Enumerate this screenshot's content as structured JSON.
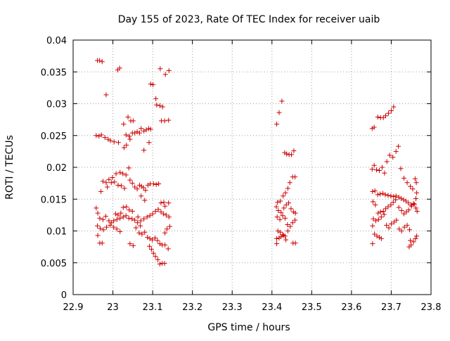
{
  "chart_data": {
    "type": "scatter",
    "title": "Day 155 of 2023, Rate Of TEC Index for receiver uaib",
    "xlabel": "GPS time / hours",
    "ylabel": "ROTI / TECUs",
    "xlim": [
      22.9,
      23.8
    ],
    "ylim": [
      0,
      0.04
    ],
    "x_ticks": [
      22.9,
      23.0,
      23.1,
      23.2,
      23.3,
      23.4,
      23.5,
      23.6,
      23.7,
      23.8
    ],
    "x_tick_labels": [
      "22.9",
      "23",
      "23.1",
      "23.2",
      "23.3",
      "23.4",
      "23.5",
      "23.6",
      "23.7",
      "23.8"
    ],
    "y_ticks": [
      0,
      0.005,
      0.01,
      0.015,
      0.02,
      0.025,
      0.03,
      0.035,
      0.04
    ],
    "y_tick_labels": [
      "0",
      "0.005",
      "0.01",
      "0.015",
      "0.02",
      "0.025",
      "0.03",
      "0.035",
      "0.04"
    ],
    "grid": true,
    "marker": "+",
    "colors": {
      "points": "#cc0000",
      "grid": "#a0a0a0",
      "axis": "#000000"
    },
    "series": [
      {
        "name": "ROTI",
        "points": [
          [
            22.961,
            0.0368
          ],
          [
            22.966,
            0.0368
          ],
          [
            22.973,
            0.0366
          ],
          [
            22.983,
            0.0314
          ],
          [
            23.012,
            0.0353
          ],
          [
            23.017,
            0.0356
          ],
          [
            23.119,
            0.0355
          ],
          [
            23.132,
            0.0346
          ],
          [
            23.141,
            0.0352
          ],
          [
            23.095,
            0.0331
          ],
          [
            23.101,
            0.033
          ],
          [
            23.108,
            0.0308
          ],
          [
            23.11,
            0.0298
          ],
          [
            23.118,
            0.0297
          ],
          [
            23.125,
            0.0295
          ],
          [
            23.122,
            0.0273
          ],
          [
            23.13,
            0.0273
          ],
          [
            23.14,
            0.0274
          ],
          [
            22.958,
            0.025
          ],
          [
            22.965,
            0.0249
          ],
          [
            22.971,
            0.0251
          ],
          [
            22.98,
            0.0247
          ],
          [
            22.988,
            0.0244
          ],
          [
            22.994,
            0.0242
          ],
          [
            23.003,
            0.024
          ],
          [
            23.014,
            0.0239
          ],
          [
            23.027,
            0.0268
          ],
          [
            23.038,
            0.0279
          ],
          [
            23.045,
            0.0273
          ],
          [
            23.051,
            0.0273
          ],
          [
            23.033,
            0.0251
          ],
          [
            23.041,
            0.0249
          ],
          [
            23.049,
            0.0254
          ],
          [
            23.055,
            0.0254
          ],
          [
            23.061,
            0.0256
          ],
          [
            23.067,
            0.0254
          ],
          [
            23.071,
            0.0261
          ],
          [
            23.078,
            0.0257
          ],
          [
            23.084,
            0.0259
          ],
          [
            23.09,
            0.0261
          ],
          [
            23.095,
            0.026
          ],
          [
            23.028,
            0.0231
          ],
          [
            23.034,
            0.0235
          ],
          [
            23.043,
            0.0244
          ],
          [
            23.078,
            0.0227
          ],
          [
            23.091,
            0.0239
          ],
          [
            23.04,
            0.0199
          ],
          [
            23.033,
            0.0188
          ],
          [
            23.025,
            0.019
          ],
          [
            23.018,
            0.0192
          ],
          [
            23.008,
            0.019
          ],
          [
            22.999,
            0.0184
          ],
          [
            22.99,
            0.0181
          ],
          [
            22.983,
            0.0176
          ],
          [
            22.975,
            0.0178
          ],
          [
            22.97,
            0.0162
          ],
          [
            22.986,
            0.0169
          ],
          [
            22.996,
            0.0176
          ],
          [
            23.004,
            0.0177
          ],
          [
            23.013,
            0.0172
          ],
          [
            23.021,
            0.0171
          ],
          [
            23.029,
            0.0167
          ],
          [
            23.043,
            0.018
          ],
          [
            23.049,
            0.0175
          ],
          [
            23.055,
            0.0169
          ],
          [
            23.061,
            0.0166
          ],
          [
            23.067,
            0.0172
          ],
          [
            23.072,
            0.017
          ],
          [
            23.077,
            0.0168
          ],
          [
            23.082,
            0.0164
          ],
          [
            23.088,
            0.0172
          ],
          [
            23.094,
            0.0174
          ],
          [
            23.102,
            0.0174
          ],
          [
            23.109,
            0.0173
          ],
          [
            23.115,
            0.0174
          ],
          [
            23.071,
            0.0155
          ],
          [
            23.08,
            0.0148
          ],
          [
            23.121,
            0.0144
          ],
          [
            23.128,
            0.0145
          ],
          [
            23.131,
            0.0139
          ],
          [
            23.14,
            0.0144
          ],
          [
            22.958,
            0.0136
          ],
          [
            22.962,
            0.0128
          ],
          [
            22.967,
            0.012
          ],
          [
            22.975,
            0.0118
          ],
          [
            22.982,
            0.0123
          ],
          [
            22.99,
            0.0116
          ],
          [
            22.996,
            0.0113
          ],
          [
            23.002,
            0.0116
          ],
          [
            23.01,
            0.0118
          ],
          [
            23.018,
            0.012
          ],
          [
            23.026,
            0.0122
          ],
          [
            23.033,
            0.0124
          ],
          [
            23.04,
            0.012
          ],
          [
            23.048,
            0.0119
          ],
          [
            23.055,
            0.0117
          ],
          [
            23.062,
            0.0113
          ],
          [
            23.07,
            0.0116
          ],
          [
            23.078,
            0.0119
          ],
          [
            23.086,
            0.0122
          ],
          [
            23.093,
            0.0124
          ],
          [
            23.1,
            0.0127
          ],
          [
            23.107,
            0.0131
          ],
          [
            23.114,
            0.0134
          ],
          [
            23.121,
            0.013
          ],
          [
            23.127,
            0.0127
          ],
          [
            23.134,
            0.0125
          ],
          [
            23.141,
            0.0122
          ],
          [
            22.961,
            0.0108
          ],
          [
            22.968,
            0.0104
          ],
          [
            22.976,
            0.0102
          ],
          [
            22.984,
            0.0106
          ],
          [
            22.993,
            0.0109
          ],
          [
            23.002,
            0.0106
          ],
          [
            23.01,
            0.0103
          ],
          [
            23.018,
            0.0099
          ],
          [
            23.026,
            0.0137
          ],
          [
            23.034,
            0.0138
          ],
          [
            23.041,
            0.0133
          ],
          [
            23.049,
            0.0131
          ],
          [
            23.007,
            0.0127
          ],
          [
            23.013,
            0.0125
          ],
          [
            23.02,
            0.0128
          ],
          [
            23.058,
            0.0105
          ],
          [
            23.066,
            0.0097
          ],
          [
            23.073,
            0.0095
          ],
          [
            23.08,
            0.0098
          ],
          [
            23.087,
            0.009
          ],
          [
            23.093,
            0.0088
          ],
          [
            23.099,
            0.0086
          ],
          [
            23.106,
            0.0089
          ],
          [
            23.112,
            0.0085
          ],
          [
            23.118,
            0.008
          ],
          [
            23.124,
            0.0078
          ],
          [
            23.131,
            0.0078
          ],
          [
            23.139,
            0.0072
          ],
          [
            23.136,
            0.0103
          ],
          [
            23.143,
            0.0107
          ],
          [
            23.131,
            0.0097
          ],
          [
            23.063,
            0.0122
          ],
          [
            23.069,
            0.0108
          ],
          [
            22.962,
            0.0093
          ],
          [
            22.967,
            0.0081
          ],
          [
            22.973,
            0.0081
          ],
          [
            23.043,
            0.008
          ],
          [
            23.051,
            0.0077
          ],
          [
            23.092,
            0.0076
          ],
          [
            23.097,
            0.0071
          ],
          [
            23.102,
            0.0065
          ],
          [
            23.107,
            0.006
          ],
          [
            23.113,
            0.0055
          ],
          [
            23.118,
            0.0048
          ],
          [
            23.124,
            0.0049
          ],
          [
            23.13,
            0.0049
          ],
          [
            23.412,
            0.0268
          ],
          [
            23.418,
            0.0286
          ],
          [
            23.425,
            0.0304
          ],
          [
            23.432,
            0.0223
          ],
          [
            23.437,
            0.0221
          ],
          [
            23.443,
            0.022
          ],
          [
            23.449,
            0.022
          ],
          [
            23.455,
            0.0226
          ],
          [
            23.452,
            0.0185
          ],
          [
            23.458,
            0.0185
          ],
          [
            23.445,
            0.0176
          ],
          [
            23.44,
            0.0167
          ],
          [
            23.434,
            0.016
          ],
          [
            23.428,
            0.0155
          ],
          [
            23.421,
            0.0147
          ],
          [
            23.414,
            0.0145
          ],
          [
            23.411,
            0.0138
          ],
          [
            23.416,
            0.0132
          ],
          [
            23.423,
            0.0129
          ],
          [
            23.43,
            0.0136
          ],
          [
            23.436,
            0.0141
          ],
          [
            23.442,
            0.0144
          ],
          [
            23.448,
            0.0135
          ],
          [
            23.454,
            0.013
          ],
          [
            23.459,
            0.0128
          ],
          [
            23.413,
            0.0122
          ],
          [
            23.42,
            0.0118
          ],
          [
            23.427,
            0.0124
          ],
          [
            23.433,
            0.012
          ],
          [
            23.439,
            0.011
          ],
          [
            23.446,
            0.0107
          ],
          [
            23.452,
            0.0113
          ],
          [
            23.458,
            0.0117
          ],
          [
            23.415,
            0.01
          ],
          [
            23.421,
            0.0098
          ],
          [
            23.427,
            0.0094
          ],
          [
            23.433,
            0.0092
          ],
          [
            23.44,
            0.01
          ],
          [
            23.412,
            0.0088
          ],
          [
            23.418,
            0.0089
          ],
          [
            23.423,
            0.0091
          ],
          [
            23.429,
            0.0093
          ],
          [
            23.435,
            0.0086
          ],
          [
            23.412,
            0.008
          ],
          [
            23.453,
            0.0081
          ],
          [
            23.459,
            0.0081
          ],
          [
            23.652,
            0.0261
          ],
          [
            23.657,
            0.0263
          ],
          [
            23.666,
            0.0279
          ],
          [
            23.673,
            0.0278
          ],
          [
            23.68,
            0.0278
          ],
          [
            23.686,
            0.0281
          ],
          [
            23.693,
            0.0285
          ],
          [
            23.7,
            0.0289
          ],
          [
            23.706,
            0.0295
          ],
          [
            23.718,
            0.0233
          ],
          [
            23.712,
            0.0225
          ],
          [
            23.704,
            0.0216
          ],
          [
            23.696,
            0.0219
          ],
          [
            23.689,
            0.0209
          ],
          [
            23.683,
            0.0191
          ],
          [
            23.677,
            0.02
          ],
          [
            23.67,
            0.0195
          ],
          [
            23.663,
            0.0196
          ],
          [
            23.657,
            0.0203
          ],
          [
            23.652,
            0.0197
          ],
          [
            23.724,
            0.0198
          ],
          [
            23.732,
            0.0183
          ],
          [
            23.74,
            0.0176
          ],
          [
            23.748,
            0.017
          ],
          [
            23.754,
            0.0166
          ],
          [
            23.76,
            0.0182
          ],
          [
            23.763,
            0.0176
          ],
          [
            23.653,
            0.0162
          ],
          [
            23.659,
            0.0163
          ],
          [
            23.666,
            0.0157
          ],
          [
            23.672,
            0.0158
          ],
          [
            23.679,
            0.0159
          ],
          [
            23.685,
            0.0157
          ],
          [
            23.692,
            0.0156
          ],
          [
            23.699,
            0.0155
          ],
          [
            23.706,
            0.0154
          ],
          [
            23.712,
            0.0155
          ],
          [
            23.719,
            0.0153
          ],
          [
            23.725,
            0.0151
          ],
          [
            23.731,
            0.0149
          ],
          [
            23.737,
            0.0147
          ],
          [
            23.743,
            0.0144
          ],
          [
            23.75,
            0.0141
          ],
          [
            23.756,
            0.0143
          ],
          [
            23.762,
            0.0151
          ],
          [
            23.764,
            0.016
          ],
          [
            23.654,
            0.0146
          ],
          [
            23.66,
            0.0141
          ],
          [
            23.667,
            0.0128
          ],
          [
            23.673,
            0.013
          ],
          [
            23.68,
            0.0131
          ],
          [
            23.686,
            0.0135
          ],
          [
            23.692,
            0.0138
          ],
          [
            23.699,
            0.0141
          ],
          [
            23.705,
            0.0145
          ],
          [
            23.711,
            0.0149
          ],
          [
            23.719,
            0.0137
          ],
          [
            23.726,
            0.0132
          ],
          [
            23.732,
            0.0127
          ],
          [
            23.738,
            0.013
          ],
          [
            23.744,
            0.0133
          ],
          [
            23.751,
            0.0139
          ],
          [
            23.758,
            0.0142
          ],
          [
            23.762,
            0.0136
          ],
          [
            23.765,
            0.0131
          ],
          [
            23.655,
            0.0119
          ],
          [
            23.661,
            0.0116
          ],
          [
            23.668,
            0.0118
          ],
          [
            23.675,
            0.0122
          ],
          [
            23.682,
            0.0126
          ],
          [
            23.688,
            0.0109
          ],
          [
            23.694,
            0.0105
          ],
          [
            23.7,
            0.0111
          ],
          [
            23.707,
            0.0114
          ],
          [
            23.713,
            0.0117
          ],
          [
            23.72,
            0.0103
          ],
          [
            23.726,
            0.01
          ],
          [
            23.733,
            0.0106
          ],
          [
            23.74,
            0.0109
          ],
          [
            23.746,
            0.0102
          ],
          [
            23.653,
            0.0108
          ],
          [
            23.658,
            0.0095
          ],
          [
            23.664,
            0.0092
          ],
          [
            23.67,
            0.009
          ],
          [
            23.675,
            0.0088
          ],
          [
            23.653,
            0.008
          ],
          [
            23.745,
            0.0075
          ],
          [
            23.75,
            0.0078
          ],
          [
            23.756,
            0.0083
          ],
          [
            23.761,
            0.0088
          ],
          [
            23.764,
            0.0092
          ],
          [
            23.748,
            0.0085
          ]
        ]
      }
    ]
  }
}
